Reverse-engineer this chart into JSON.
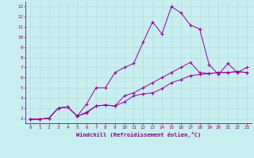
{
  "xlabel": "Windchill (Refroidissement éolien,°C)",
  "bg_color": "#c8eef0",
  "grid_color": "#b0d8da",
  "line_color": "#990099",
  "xlim": [
    -0.5,
    23.5
  ],
  "ylim": [
    1.5,
    13.5
  ],
  "xticks": [
    0,
    1,
    2,
    3,
    4,
    5,
    6,
    7,
    8,
    9,
    10,
    11,
    12,
    13,
    14,
    15,
    16,
    17,
    18,
    19,
    20,
    21,
    22,
    23
  ],
  "yticks": [
    2,
    3,
    4,
    5,
    6,
    7,
    8,
    9,
    10,
    11,
    12,
    13
  ],
  "series": [
    {
      "x": [
        0,
        1,
        2,
        3,
        4,
        5,
        6,
        7,
        8,
        9,
        10,
        11,
        12,
        13,
        14,
        15,
        16,
        17,
        18,
        19,
        20,
        21,
        22,
        23
      ],
      "y": [
        1.9,
        1.9,
        2.0,
        3.0,
        3.1,
        2.2,
        2.5,
        3.2,
        3.3,
        3.2,
        3.6,
        4.2,
        4.4,
        4.5,
        4.9,
        5.5,
        5.8,
        6.2,
        6.3,
        6.4,
        6.5,
        6.5,
        6.6,
        6.5
      ]
    },
    {
      "x": [
        0,
        1,
        2,
        3,
        4,
        5,
        6,
        7,
        8,
        9,
        10,
        11,
        12,
        13,
        14,
        15,
        16,
        17,
        18,
        19,
        20,
        21,
        22,
        23
      ],
      "y": [
        1.9,
        1.9,
        2.0,
        3.0,
        3.1,
        2.2,
        3.4,
        5.0,
        5.0,
        6.5,
        7.0,
        7.4,
        9.5,
        11.5,
        10.3,
        13.0,
        12.4,
        11.2,
        10.8,
        7.3,
        6.3,
        7.4,
        6.5,
        7.0
      ]
    },
    {
      "x": [
        0,
        1,
        2,
        3,
        4,
        5,
        6,
        7,
        8,
        9,
        10,
        11,
        12,
        13,
        14,
        15,
        16,
        17,
        18,
        19,
        20,
        21,
        22,
        23
      ],
      "y": [
        1.9,
        1.9,
        2.0,
        3.0,
        3.1,
        2.2,
        2.6,
        3.2,
        3.3,
        3.2,
        4.2,
        4.5,
        5.0,
        5.5,
        6.0,
        6.5,
        7.0,
        7.5,
        6.5,
        6.4,
        6.5,
        6.5,
        6.6,
        6.5
      ]
    }
  ]
}
